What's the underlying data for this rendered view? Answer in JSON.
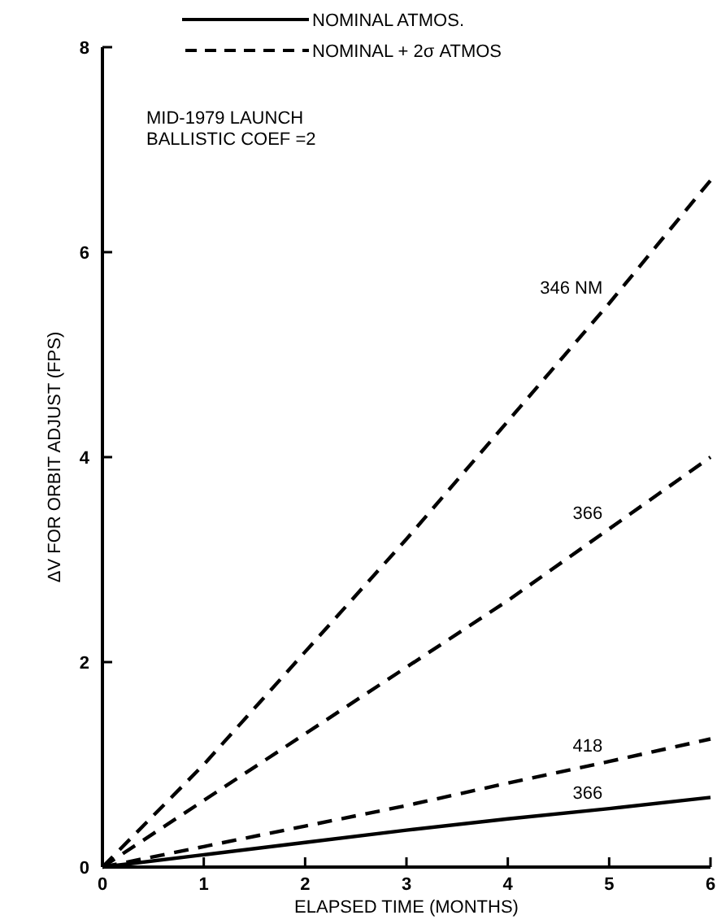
{
  "chart_data": {
    "type": "line",
    "xlabel": "ELAPSED TIME (MONTHS)",
    "ylabel": "ΔV FOR ORBIT ADJUST (FPS)",
    "x": [
      0,
      1,
      2,
      3,
      4,
      5,
      6
    ],
    "series": [
      {
        "name": "346 NM",
        "color": "#000000",
        "line_style": "dashed",
        "values": [
          0,
          1.0,
          2.1,
          3.2,
          4.35,
          5.5,
          6.7
        ]
      },
      {
        "name": "366",
        "color": "#000000",
        "line_style": "dashed",
        "values": [
          0,
          0.65,
          1.3,
          1.95,
          2.6,
          3.3,
          4.0
        ]
      },
      {
        "name": "418",
        "color": "#000000",
        "line_style": "dashed",
        "values": [
          0,
          0.2,
          0.4,
          0.6,
          0.82,
          1.03,
          1.25
        ]
      },
      {
        "name": "366",
        "color": "#000000",
        "line_style": "solid",
        "values": [
          0,
          0.12,
          0.24,
          0.36,
          0.47,
          0.57,
          0.68
        ]
      }
    ],
    "annotations": [
      "NOMINAL ATMOS.",
      "NOMINAL + 2σ ATMOS",
      "MID-1979 LAUNCH",
      "BALLISTIC COEF =2"
    ],
    "xlim": [
      0,
      6
    ],
    "ylim": [
      0,
      8
    ],
    "xticks": [
      0,
      1,
      2,
      3,
      4,
      5,
      6
    ],
    "yticks": [
      0,
      2,
      4,
      6,
      8
    ],
    "grid": false,
    "marker": "none"
  }
}
